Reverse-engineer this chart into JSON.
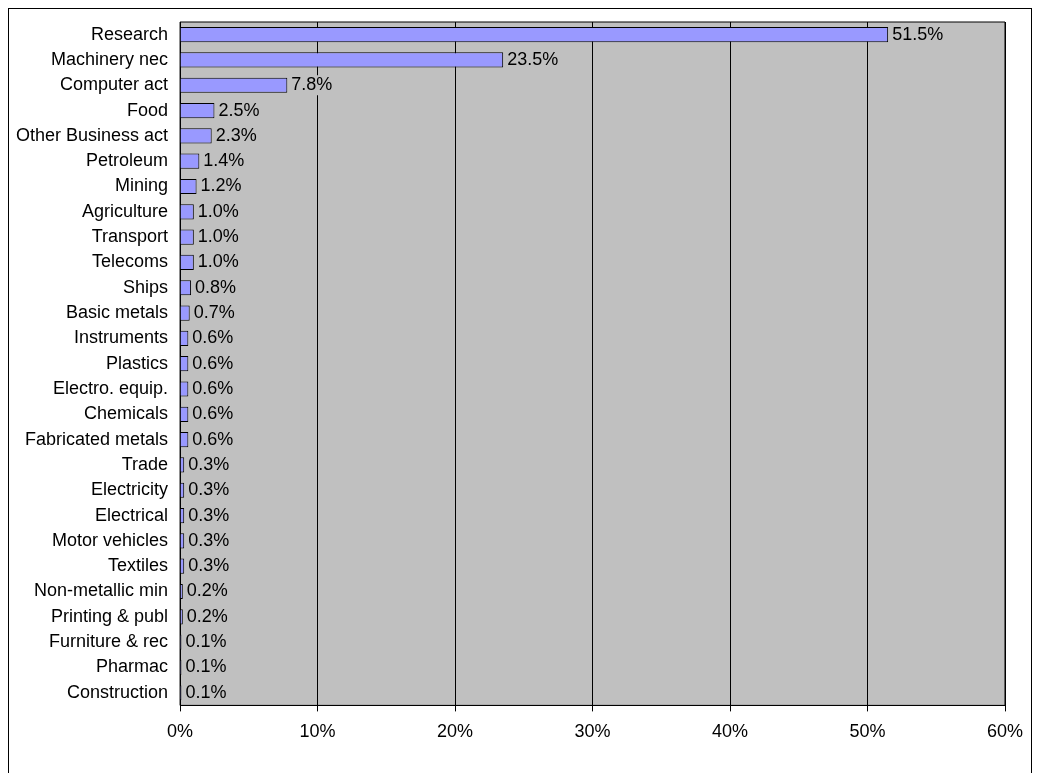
{
  "chart_data": {
    "type": "bar",
    "orientation": "horizontal",
    "categories": [
      "Research",
      "Machinery nec",
      "Computer act",
      "Food",
      "Other Business act",
      "Petroleum",
      "Mining",
      "Agriculture",
      "Transport",
      "Telecoms",
      "Ships",
      "Basic metals",
      "Instruments",
      "Plastics",
      "Electro. equip.",
      "Chemicals",
      "Fabricated metals",
      "Trade",
      "Electricity",
      "Electrical",
      "Motor vehicles",
      "Textiles",
      "Non-metallic min",
      "Printing & publ",
      "Furniture & rec",
      "Pharmac",
      "Construction"
    ],
    "values": [
      51.5,
      23.5,
      7.8,
      2.5,
      2.3,
      1.4,
      1.2,
      1.0,
      1.0,
      1.0,
      0.8,
      0.7,
      0.6,
      0.6,
      0.6,
      0.6,
      0.6,
      0.3,
      0.3,
      0.3,
      0.3,
      0.3,
      0.2,
      0.2,
      0.1,
      0.1,
      0.1
    ],
    "value_labels": [
      "51.5%",
      "23.5%",
      "7.8%",
      "2.5%",
      "2.3%",
      "1.4%",
      "1.2%",
      "1.0%",
      "1.0%",
      "1.0%",
      "0.8%",
      "0.7%",
      "0.6%",
      "0.6%",
      "0.6%",
      "0.6%",
      "0.6%",
      "0.3%",
      "0.3%",
      "0.3%",
      "0.3%",
      "0.3%",
      "0.2%",
      "0.2%",
      "0.1%",
      "0.1%",
      "0.1%"
    ],
    "color": "#9999ff",
    "xlim": [
      0,
      60
    ],
    "xticks": [
      {
        "value": 0,
        "label": "0%"
      },
      {
        "value": 10,
        "label": "10%"
      },
      {
        "value": 20,
        "label": "20%"
      },
      {
        "value": 30,
        "label": "30%"
      },
      {
        "value": 40,
        "label": "40%"
      },
      {
        "value": 50,
        "label": "50%"
      },
      {
        "value": 60,
        "label": "60%"
      }
    ],
    "grid": "x",
    "legend": false
  }
}
